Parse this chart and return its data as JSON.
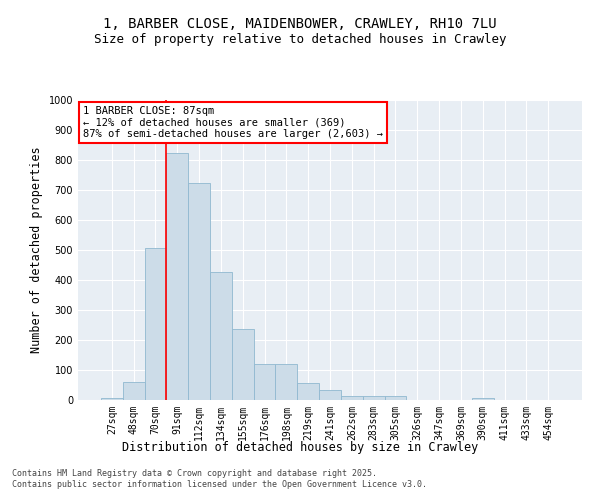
{
  "title1": "1, BARBER CLOSE, MAIDENBOWER, CRAWLEY, RH10 7LU",
  "title2": "Size of property relative to detached houses in Crawley",
  "xlabel": "Distribution of detached houses by size in Crawley",
  "ylabel": "Number of detached properties",
  "categories": [
    "27sqm",
    "48sqm",
    "70sqm",
    "91sqm",
    "112sqm",
    "134sqm",
    "155sqm",
    "176sqm",
    "198sqm",
    "219sqm",
    "241sqm",
    "262sqm",
    "283sqm",
    "305sqm",
    "326sqm",
    "347sqm",
    "369sqm",
    "390sqm",
    "411sqm",
    "433sqm",
    "454sqm"
  ],
  "values": [
    8,
    60,
    508,
    825,
    725,
    428,
    238,
    120,
    120,
    57,
    33,
    14,
    12,
    12,
    0,
    0,
    0,
    8,
    0,
    0,
    0
  ],
  "bar_color": "#ccdce8",
  "bar_edge_color": "#90b8d0",
  "vline_x_index": 3,
  "vline_color": "red",
  "annotation_text": "1 BARBER CLOSE: 87sqm\n← 12% of detached houses are smaller (369)\n87% of semi-detached houses are larger (2,603) →",
  "annotation_box_color": "white",
  "annotation_box_edge": "red",
  "ylim": [
    0,
    1000
  ],
  "yticks": [
    0,
    100,
    200,
    300,
    400,
    500,
    600,
    700,
    800,
    900,
    1000
  ],
  "footer1": "Contains HM Land Registry data © Crown copyright and database right 2025.",
  "footer2": "Contains public sector information licensed under the Open Government Licence v3.0.",
  "bg_color": "#ffffff",
  "plot_bg_color": "#e8eef4",
  "title_fontsize": 10,
  "subtitle_fontsize": 9,
  "tick_fontsize": 7,
  "label_fontsize": 8.5,
  "annotation_fontsize": 7.5,
  "footer_fontsize": 6
}
